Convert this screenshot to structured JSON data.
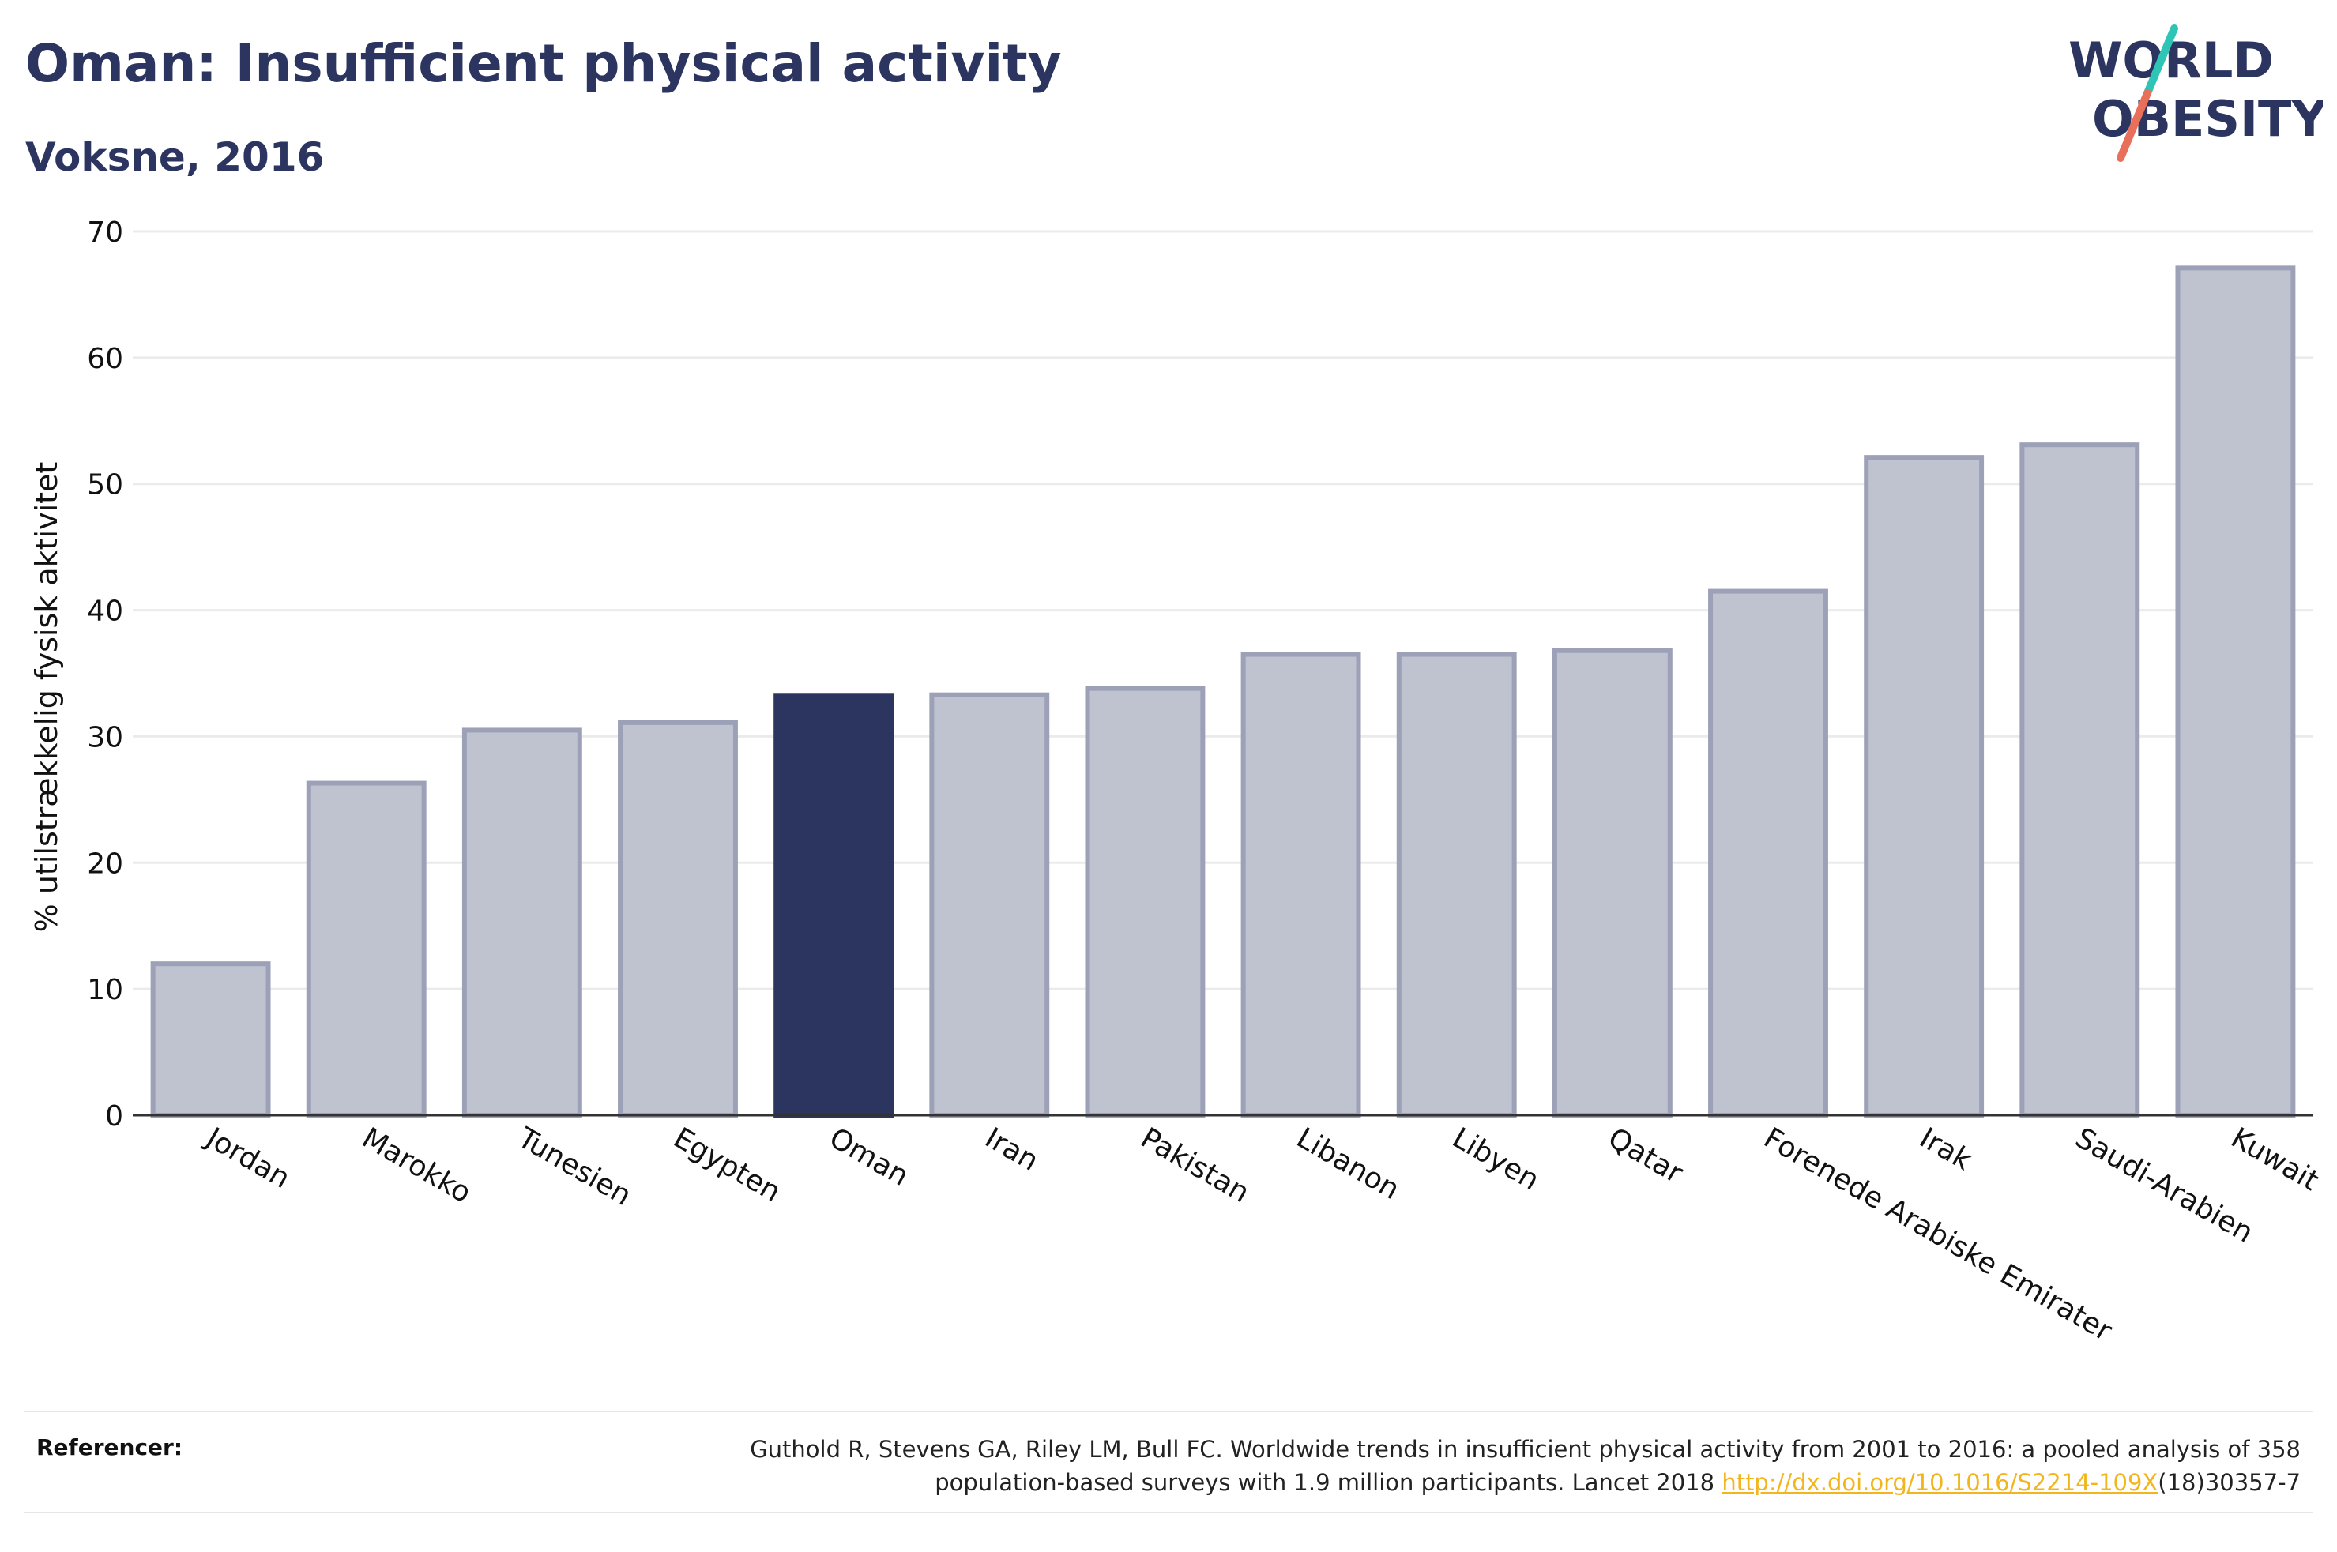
{
  "header": {
    "title": "Oman: Insufficient physical activity",
    "subtitle": "Voksne, 2016"
  },
  "logo": {
    "line1": "WORLD",
    "line2": "OBESITY",
    "colors": {
      "text": "#2b3560",
      "slash_teal": "#2ec4b6",
      "slash_coral": "#e8705a"
    }
  },
  "chart_data": {
    "type": "bar",
    "ylabel": "% utilstrækkelig fysisk aktivitet",
    "ylim": [
      0,
      70
    ],
    "yticks": [
      0,
      10,
      20,
      30,
      40,
      50,
      60,
      70
    ],
    "grid": true,
    "categories": [
      "Jordan",
      "Marokko",
      "Tunesien",
      "Egypten",
      "Oman",
      "Iran",
      "Pakistan",
      "Libanon",
      "Libyen",
      "Qatar",
      "Forenede Arabiske Emirater",
      "Irak",
      "Saudi-Arabien",
      "Kuwait"
    ],
    "values": [
      12.0,
      26.3,
      30.5,
      31.1,
      33.2,
      33.3,
      33.8,
      36.5,
      36.5,
      36.8,
      41.5,
      52.1,
      53.1,
      67.1
    ],
    "highlight": "Oman",
    "colors": {
      "bar": "#bfc2cf",
      "bar_border": "#9da1b8",
      "highlight": "#2b3560",
      "grid": "#ebebeb",
      "axis": "#333333"
    }
  },
  "references": {
    "label": "Referencer:",
    "text_line1": "Guthold R, Stevens GA, Riley LM, Bull FC. Worldwide trends in insufficient physical activity from 2001 to 2016: a pooled analysis of 358",
    "text_line2_pre": "population-based surveys with 1.9 million participants. Lancet 2018 ",
    "link": "http://dx.doi.org/10.1016/S2214-109X",
    "text_line2_post": "(18)30357-7",
    "link_color": "#f2b51c"
  }
}
